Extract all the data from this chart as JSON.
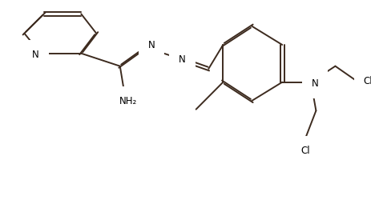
{
  "bg_color": "#ffffff",
  "bond_color": "#3d2b1f",
  "figsize": [
    4.64,
    2.5
  ],
  "dpi": 100,
  "xlim": [
    0,
    464
  ],
  "ylim": [
    0,
    250
  ]
}
